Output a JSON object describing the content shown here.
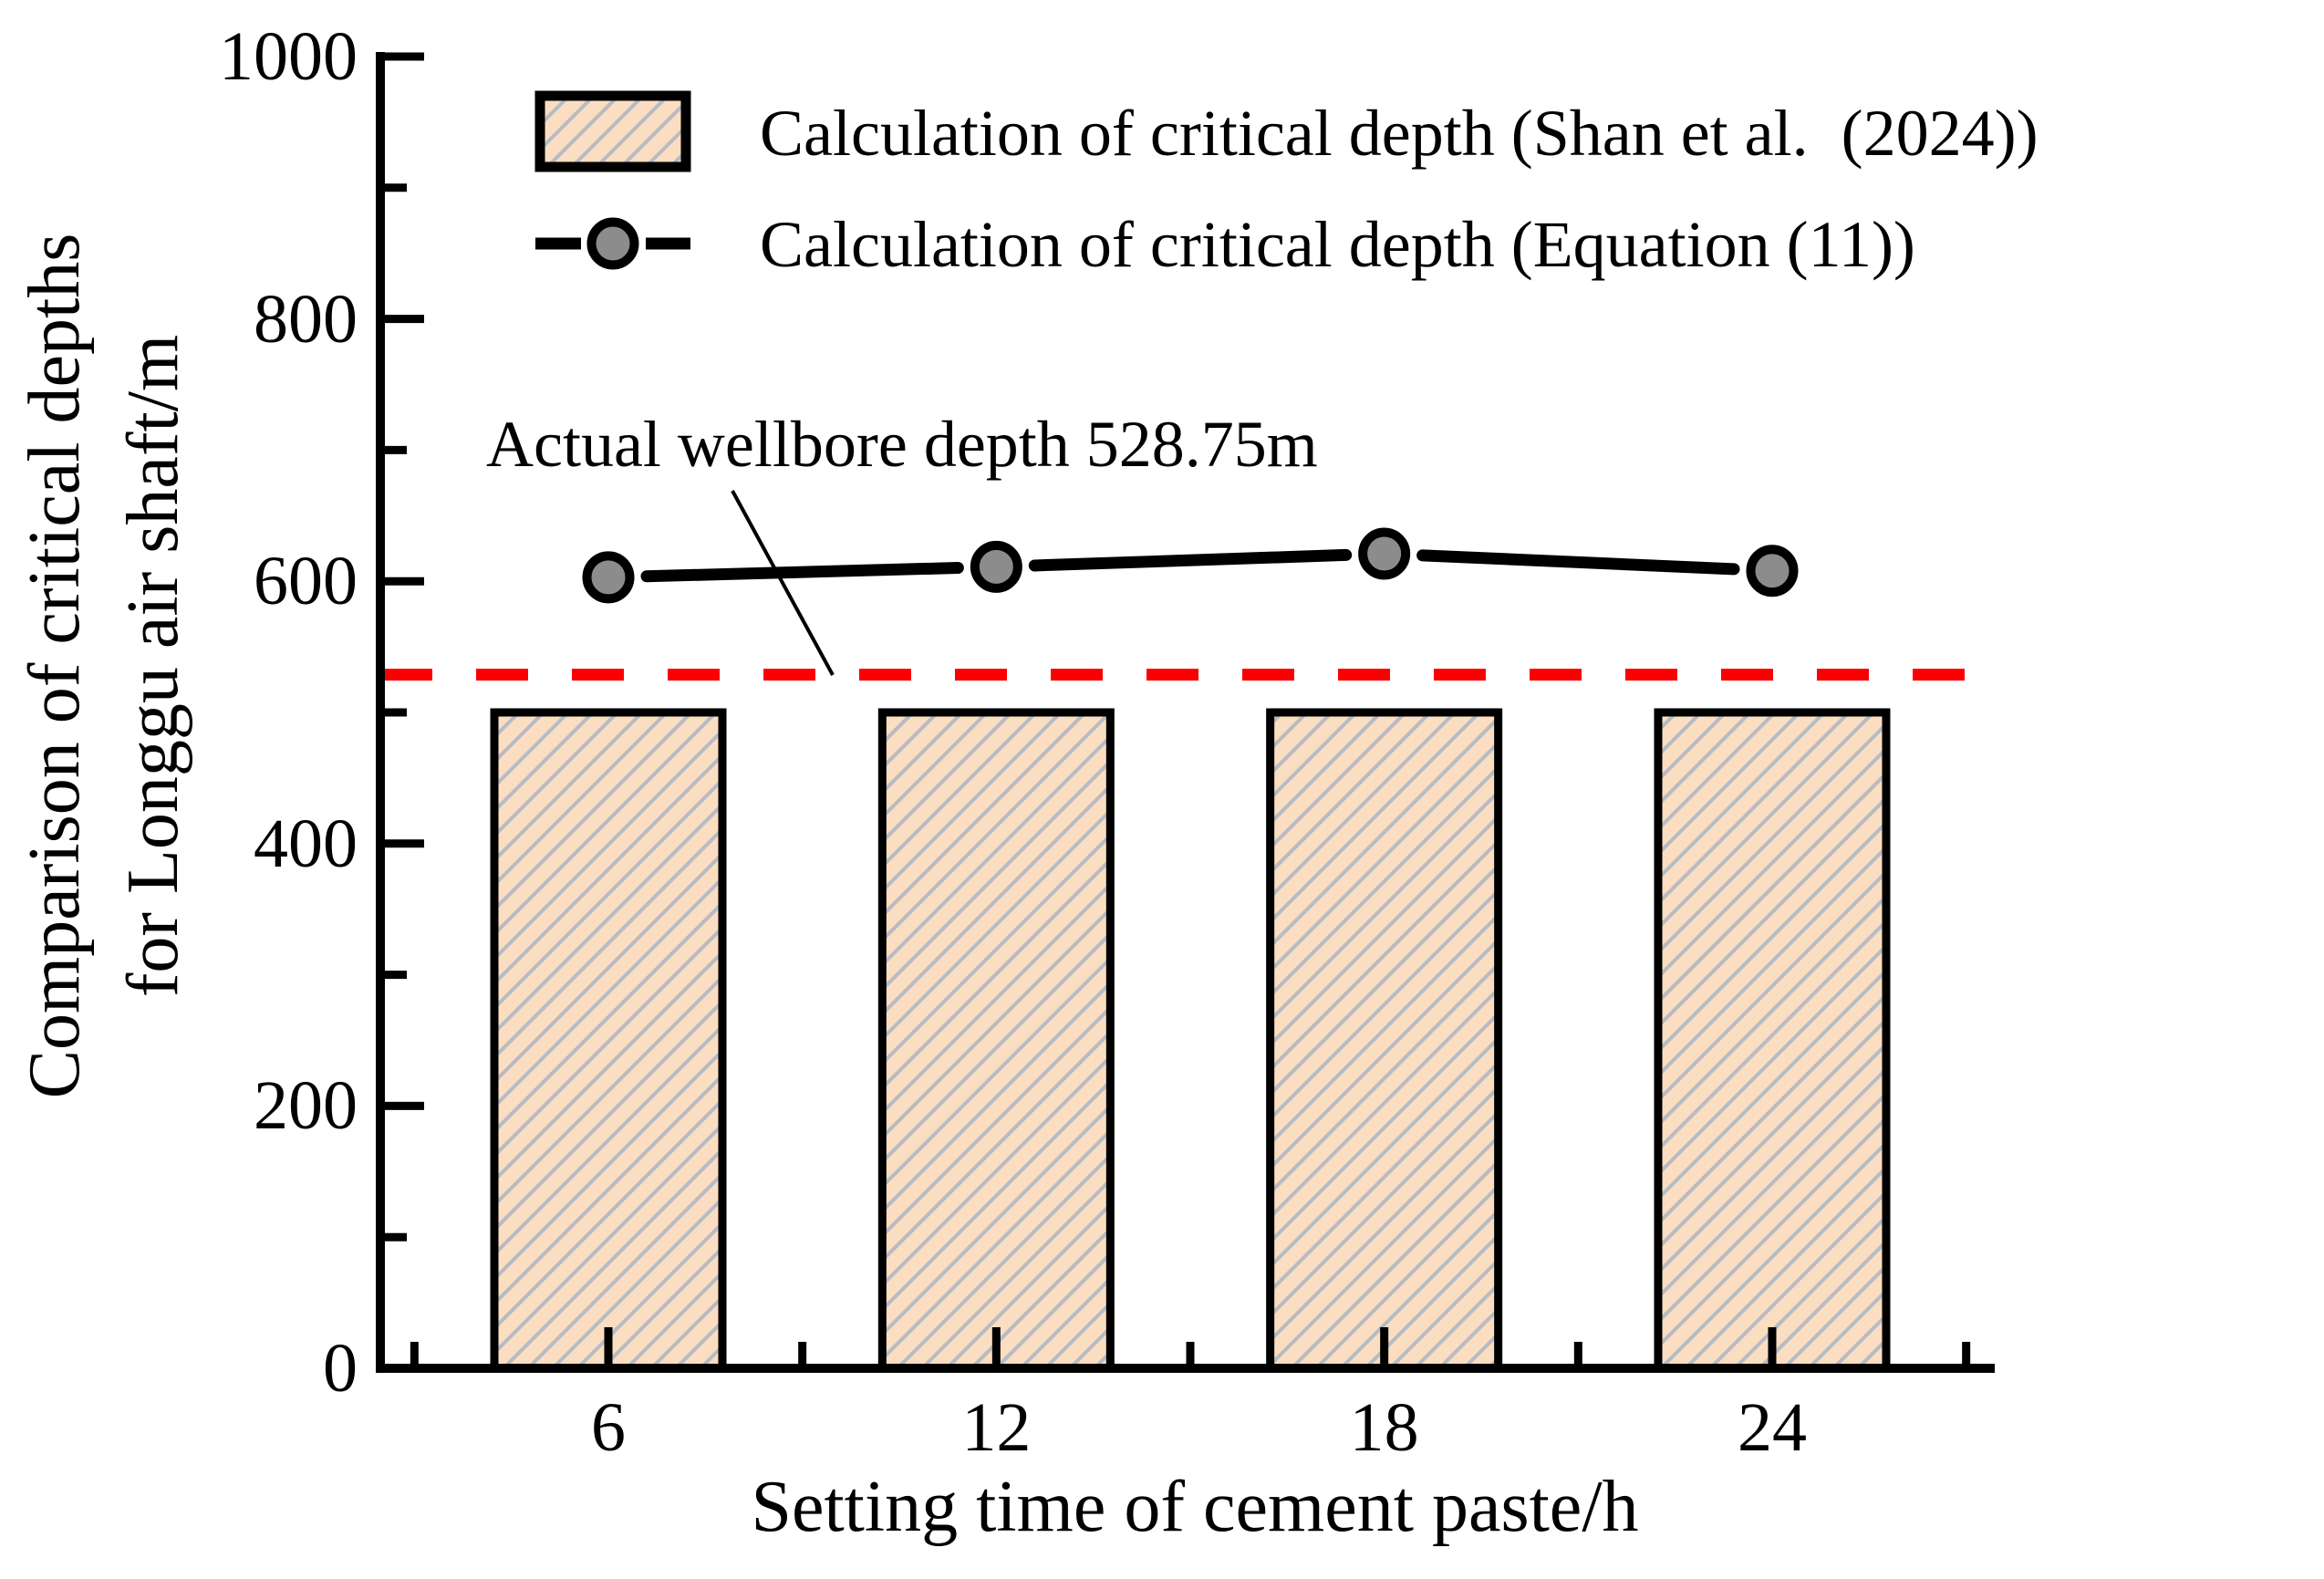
{
  "chart_data": {
    "type": "bar",
    "title": "",
    "categories": [
      6,
      12,
      18,
      24
    ],
    "series": [
      {
        "name": "Calculation of critical depth (Shan et al.  (2024))",
        "type": "bar",
        "values": [
          500,
          500,
          500,
          500
        ],
        "fill": "#fbdec1",
        "hatch": "diagonal-slash",
        "hatch_color": "#b7bbc3",
        "edge_color": "#000000"
      },
      {
        "name": "Calculation of critical depth (Equation (11))",
        "type": "line",
        "values": [
          603,
          611,
          621,
          608
        ],
        "line_color": "#000000",
        "line_style": "dash-marker-dash",
        "marker": "circle",
        "marker_fill": "#8c8c8c",
        "marker_edge": "#000000"
      }
    ],
    "reference_line": {
      "value": 528.75,
      "label": "Actual wellbore depth 528.75m",
      "color": "#fb0000",
      "style": "dashed"
    },
    "xlabel": "Setting time of cement paste/h",
    "ylabel": "Comparison of critical depths for Longgu air shaft/m",
    "ylabel_line1": "Comparison of critical depths",
    "ylabel_line2": "for Longgu air shaft/m",
    "ylim": [
      0,
      1000
    ],
    "yticks_major": [
      0,
      200,
      400,
      600,
      800,
      1000
    ],
    "yticks_minor": [
      100,
      300,
      500,
      700,
      900
    ],
    "grid": false,
    "legend_position": "top-left-inside",
    "background": "#ffffff"
  }
}
